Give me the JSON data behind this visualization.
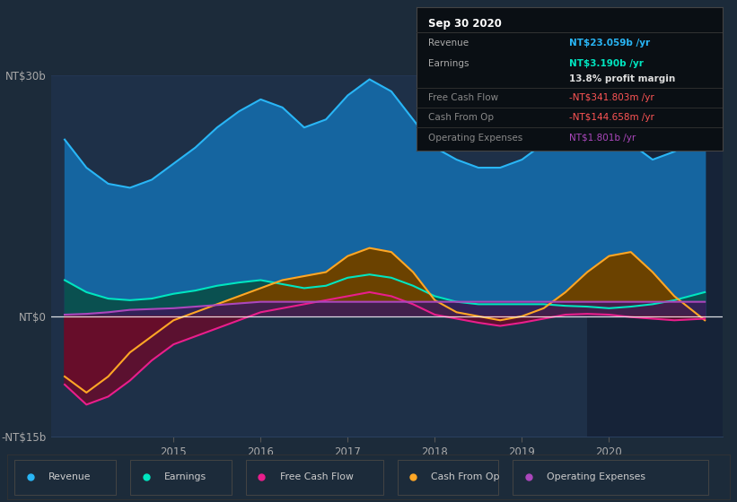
{
  "bg_color": "#1c2b3a",
  "plot_bg_color": "#1e3048",
  "highlight_bg": "#162338",
  "title_box_bg": "#0a0f14",
  "title": "Sep 30 2020",
  "ylim": [
    -15,
    30
  ],
  "yticks": [
    -15,
    0,
    30
  ],
  "ytick_labels": [
    "-NT$15b",
    "NT$0",
    "NT$30b"
  ],
  "xmin": 2013.6,
  "xmax": 2021.3,
  "xticks": [
    2015,
    2016,
    2017,
    2018,
    2019,
    2020
  ],
  "highlight_xmin": 2019.75,
  "highlight_xmax": 2021.3,
  "revenue_color": "#29b6f6",
  "revenue_fill": "#1565a0",
  "earnings_color": "#00e5c0",
  "earnings_fill": "#0a5050",
  "cashfromop_color": "#ffa726",
  "cashfromop_fill_pos": "#6b4200",
  "cashfromop_fill_neg": "#5a1a2a",
  "freecashflow_color": "#e91e8c",
  "freecashflow_fill_neg": "#6b0a2a",
  "opex_color": "#ab47bc",
  "opex_fill": "#3a1a5a",
  "x_data": [
    2013.75,
    2014.0,
    2014.25,
    2014.5,
    2014.75,
    2015.0,
    2015.25,
    2015.5,
    2015.75,
    2016.0,
    2016.25,
    2016.5,
    2016.75,
    2017.0,
    2017.25,
    2017.5,
    2017.75,
    2018.0,
    2018.25,
    2018.5,
    2018.75,
    2019.0,
    2019.25,
    2019.5,
    2019.75,
    2020.0,
    2020.25,
    2020.5,
    2020.75,
    2021.1
  ],
  "revenue": [
    22,
    18.5,
    16.5,
    16,
    17,
    19,
    21,
    23.5,
    25.5,
    27,
    26,
    23.5,
    24.5,
    27.5,
    29.5,
    28,
    24.5,
    21,
    19.5,
    18.5,
    18.5,
    19.5,
    21.5,
    24.5,
    26.5,
    24.5,
    21.5,
    19.5,
    20.5,
    22.5
  ],
  "earnings": [
    4.5,
    3.0,
    2.2,
    2.0,
    2.2,
    2.8,
    3.2,
    3.8,
    4.2,
    4.5,
    4.0,
    3.5,
    3.8,
    4.8,
    5.2,
    4.8,
    3.8,
    2.5,
    1.8,
    1.5,
    1.5,
    1.5,
    1.5,
    1.3,
    1.2,
    1.0,
    1.2,
    1.5,
    2.0,
    3.0
  ],
  "cash_from_op": [
    -7.5,
    -9.5,
    -7.5,
    -4.5,
    -2.5,
    -0.5,
    0.5,
    1.5,
    2.5,
    3.5,
    4.5,
    5.0,
    5.5,
    7.5,
    8.5,
    8.0,
    5.5,
    2.0,
    0.5,
    0.0,
    -0.5,
    0.0,
    1.0,
    3.0,
    5.5,
    7.5,
    8.0,
    5.5,
    2.5,
    -0.5
  ],
  "free_cash_flow": [
    -8.5,
    -11.0,
    -10.0,
    -8.0,
    -5.5,
    -3.5,
    -2.5,
    -1.5,
    -0.5,
    0.5,
    1.0,
    1.5,
    2.0,
    2.5,
    3.0,
    2.5,
    1.5,
    0.2,
    -0.3,
    -0.8,
    -1.2,
    -0.8,
    -0.3,
    0.2,
    0.3,
    0.2,
    -0.1,
    -0.3,
    -0.5,
    -0.3
  ],
  "op_expenses": [
    0.2,
    0.3,
    0.5,
    0.8,
    0.9,
    1.0,
    1.2,
    1.4,
    1.6,
    1.8,
    1.8,
    1.8,
    1.8,
    1.8,
    1.8,
    1.8,
    1.8,
    1.8,
    1.8,
    1.8,
    1.8,
    1.8,
    1.8,
    1.8,
    1.8,
    1.8,
    1.8,
    1.8,
    1.8,
    1.8
  ],
  "tooltip_rows": [
    {
      "label": "Revenue",
      "value": "NT$23.059b /yr",
      "label_color": "#aaaaaa",
      "value_color": "#29b6f6"
    },
    {
      "label": "Earnings",
      "value": "NT$3.190b /yr",
      "label_color": "#aaaaaa",
      "value_color": "#00e5c0"
    },
    {
      "label": "",
      "value": "13.8% profit margin",
      "label_color": "#aaaaaa",
      "value_color": "#dddddd"
    },
    {
      "label": "Free Cash Flow",
      "value": "-NT$341.803m /yr",
      "label_color": "#888888",
      "value_color": "#ff5555"
    },
    {
      "label": "Cash From Op",
      "value": "-NT$144.658m /yr",
      "label_color": "#888888",
      "value_color": "#ff5555"
    },
    {
      "label": "Operating Expenses",
      "value": "NT$1.801b /yr",
      "label_color": "#888888",
      "value_color": "#ab47bc"
    }
  ],
  "legend_items": [
    {
      "label": "Revenue",
      "color": "#29b6f6"
    },
    {
      "label": "Earnings",
      "color": "#00e5c0"
    },
    {
      "label": "Free Cash Flow",
      "color": "#e91e8c"
    },
    {
      "label": "Cash From Op",
      "color": "#ffa726"
    },
    {
      "label": "Operating Expenses",
      "color": "#ab47bc"
    }
  ]
}
